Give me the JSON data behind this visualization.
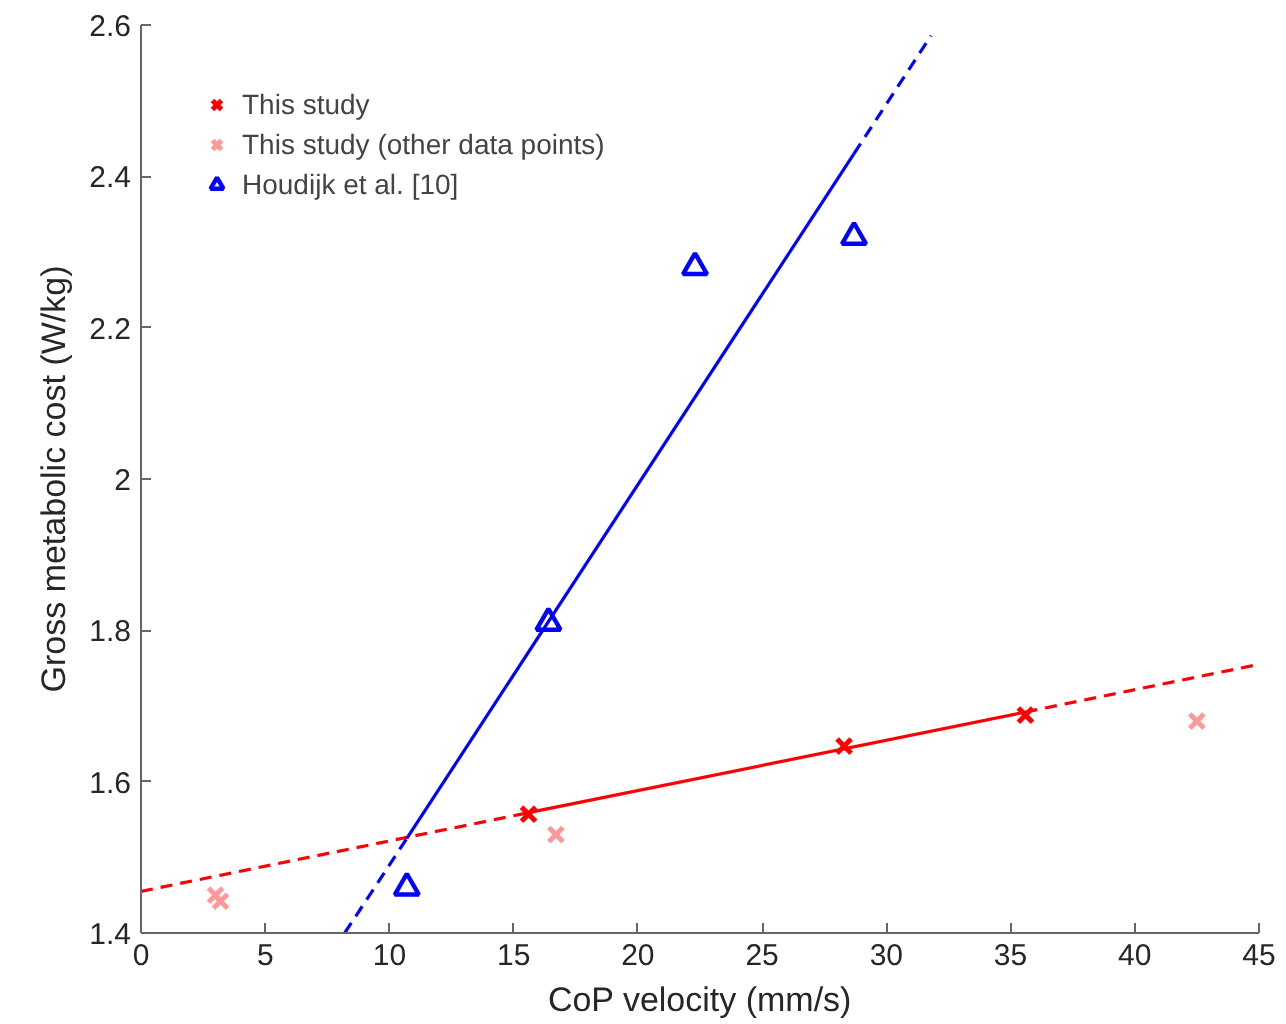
{
  "chart_data": {
    "type": "scatter",
    "xlabel": "CoP velocity (mm/s)",
    "ylabel": "Gross metabolic cost (W/kg)",
    "xlim": [
      0,
      45
    ],
    "ylim": [
      1.4,
      2.6
    ],
    "xticks": [
      0,
      5,
      10,
      15,
      20,
      25,
      30,
      35,
      40,
      45
    ],
    "yticks": [
      1.4,
      1.6,
      1.8,
      {
        "value": 2.0,
        "label": "2"
      },
      2.2,
      2.4,
      2.6
    ],
    "grid": false,
    "legend": "top left",
    "series": [
      {
        "name": "This study",
        "color": "#ff0000",
        "marker": "cross",
        "x": [
          15.6,
          28.3,
          35.6
        ],
        "values": [
          1.557,
          1.647,
          1.688
        ]
      },
      {
        "name": "This study (other data points)",
        "color": "#ff9999",
        "marker": "cross",
        "x": [
          3.0,
          3.2,
          16.7,
          42.5
        ],
        "values": [
          1.45,
          1.442,
          1.53,
          1.68
        ]
      },
      {
        "name": "Houdijk et al. [10]",
        "color": "#0000ff",
        "marker": "triangle",
        "x": [
          10.7,
          16.4,
          22.3,
          28.7
        ],
        "values": [
          1.46,
          1.81,
          2.28,
          2.32
        ]
      },
      {
        "type": "line",
        "color": "#ff0000",
        "line_style": "solid",
        "x": [
          15.6,
          35.6
        ],
        "values": [
          1.559,
          1.692
        ]
      },
      {
        "type": "line",
        "color": "#ff0000",
        "line_style": "dashed",
        "x": [
          0,
          15.6,
          25,
          35.6,
          45
        ],
        "values": [
          1.455,
          1.559,
          null,
          1.692,
          1.755
        ]
      },
      {
        "type": "line",
        "color": "#0000ff",
        "line_style": "solid",
        "x": [
          10.7,
          28.7
        ],
        "values": [
          1.525,
          2.43
        ]
      },
      {
        "type": "line",
        "color": "#0000ff",
        "line_style": "dashed",
        "x": [
          8.2,
          10.7,
          20,
          28.7,
          31.8
        ],
        "values": [
          1.4,
          1.525,
          null,
          2.43,
          2.586
        ]
      }
    ]
  }
}
